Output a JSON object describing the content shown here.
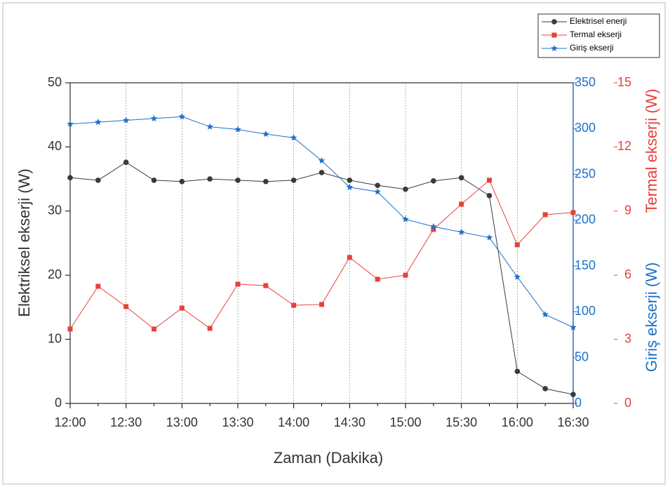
{
  "chart_data": {
    "type": "line",
    "xlabel": "Zaman (Dakika)",
    "ylabel": "Elektriksel ekserji (W)",
    "y2label": "Giriş ekserji (W)",
    "y3label": "Termal ekserji (W)",
    "categories": [
      "12:00",
      null,
      "12:30",
      null,
      "13:00",
      null,
      "13:30",
      null,
      "14:00",
      null,
      "14:30",
      null,
      "15:00",
      null,
      "15:30",
      null,
      "16:00",
      null,
      "16:30"
    ],
    "ylim": [
      0,
      50
    ],
    "yticks": [
      0,
      10,
      20,
      30,
      40,
      50
    ],
    "y2lim": [
      0,
      350
    ],
    "y2ticks": [
      0,
      50,
      100,
      150,
      200,
      250,
      300,
      350
    ],
    "y3lim": [
      0,
      15
    ],
    "y3ticks": [
      0,
      3,
      6,
      9,
      12,
      15
    ],
    "grid": true,
    "legend": "upper right",
    "series": [
      {
        "name": "Elektrisel enerji",
        "color": "#3a3a3a",
        "marker": "circle",
        "axis": "y",
        "values": [
          35.2,
          34.8,
          37.6,
          34.8,
          34.6,
          35.0,
          34.8,
          34.6,
          34.8,
          36.0,
          34.8,
          34.0,
          33.4,
          34.7,
          35.2,
          32.4,
          5.0,
          2.3,
          1.4
        ]
      },
      {
        "name": "Termal ekserji",
        "color": "#e8403a",
        "marker": "square",
        "axis": "y3",
        "values": [
          3.48,
          5.48,
          4.53,
          3.48,
          4.46,
          3.51,
          5.58,
          5.51,
          4.59,
          4.63,
          6.83,
          5.81,
          6.0,
          8.14,
          9.32,
          10.44,
          7.42,
          8.83,
          8.93
        ]
      },
      {
        "name": "Giriş ekserji",
        "color": "#1f70c8",
        "marker": "star",
        "axis": "y2",
        "values": [
          305,
          307,
          309,
          311,
          313,
          302,
          299,
          294,
          290,
          265,
          236,
          231,
          201,
          193,
          187,
          181,
          138,
          97,
          83
        ]
      }
    ]
  }
}
